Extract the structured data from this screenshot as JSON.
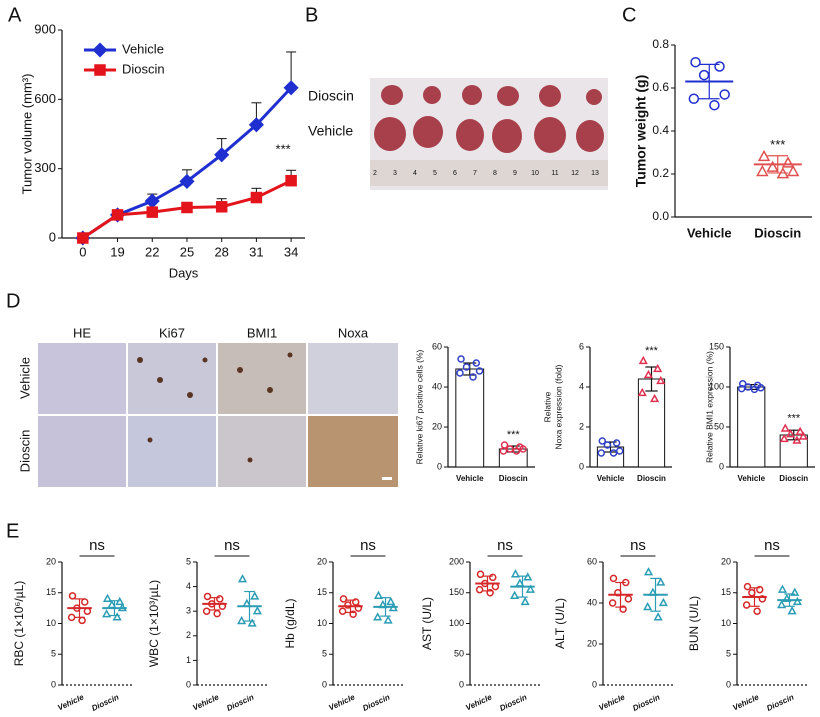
{
  "panels": [
    "A",
    "B",
    "C",
    "D",
    "E"
  ],
  "photos": {
    "B": {
      "rows": [
        "Dioscin",
        "Vehicle"
      ],
      "ruler": [
        2,
        3,
        4,
        5,
        6,
        7,
        8,
        9,
        10,
        11,
        12,
        13
      ]
    },
    "D": {
      "columns": [
        "HE",
        "Ki67",
        "BMI1",
        "Noxa"
      ],
      "rows": [
        "Vehicle",
        "Dioscin"
      ]
    }
  },
  "chart_data": [
    {
      "type": "line",
      "xlabel": "Days",
      "ylabel": "Tumor volume (mm³)",
      "categories": [
        "0",
        "19",
        "22",
        "25",
        "28",
        "31",
        "34"
      ],
      "series": [
        {
          "name": "Vehicle",
          "color": "#1f2fd0",
          "marker": "diamond",
          "values": [
            0,
            100,
            160,
            245,
            360,
            490,
            650
          ],
          "errors": [
            0,
            15,
            30,
            50,
            70,
            95,
            155
          ]
        },
        {
          "name": "Dioscin",
          "color": "#e3141b",
          "marker": "square",
          "values": [
            0,
            100,
            112,
            132,
            135,
            175,
            248
          ],
          "errors": [
            0,
            12,
            15,
            20,
            35,
            40,
            45
          ]
        }
      ],
      "ylim": [
        0,
        900
      ],
      "yticks": [
        0,
        300,
        600,
        900
      ],
      "annotation": "***",
      "legend": "upper left"
    },
    {
      "type": "dot",
      "ylabel": "Tumor weight (g)",
      "categories": [
        "Vehicle",
        "Dioscin"
      ],
      "colors": [
        "#1f2fd0",
        "#e05050"
      ],
      "markers": [
        "circle",
        "triangle"
      ],
      "points": [
        [
          0.72,
          0.7,
          0.66,
          0.57,
          0.55,
          0.52
        ],
        [
          0.28,
          0.25,
          0.23,
          0.21,
          0.21,
          0.2
        ]
      ],
      "means": [
        0.63,
        0.245
      ],
      "errors": [
        0.08,
        0.04
      ],
      "ylim": [
        0,
        0.8
      ],
      "yticks": [
        {
          "value": 0,
          "label": "0.0"
        },
        0.2,
        0.4,
        0.6,
        0.8
      ],
      "annotation": "***"
    },
    {
      "type": "bar",
      "ylabel": "Relative ki67 positive cells (%)",
      "categories": [
        "Vehicle",
        "Dioscin"
      ],
      "colors": [
        "#3040c8",
        "#e03050"
      ],
      "markers": [
        "circle",
        "circle"
      ],
      "values": [
        49,
        9
      ],
      "points": [
        [
          54,
          52,
          50,
          48,
          47,
          45
        ],
        [
          11,
          10,
          9,
          9,
          8,
          8
        ]
      ],
      "errors": [
        3,
        1.5
      ],
      "ylim": [
        0,
        60
      ],
      "yticks": [
        0,
        20,
        40,
        60
      ],
      "annotation": "***"
    },
    {
      "type": "bar",
      "ylabel": [
        "Relative",
        "Noxa expression (fold)"
      ],
      "categories": [
        "Vehicle",
        "Dioscin"
      ],
      "colors": [
        "#3040c8",
        "#e03050"
      ],
      "markers": [
        "circle",
        "triangle"
      ],
      "values": [
        1,
        4.4
      ],
      "points": [
        [
          1.3,
          1.2,
          1.1,
          0.8,
          0.7,
          0.7
        ],
        [
          5.3,
          4.9,
          4.6,
          4.3,
          3.7,
          3.4
        ]
      ],
      "errors": [
        0.25,
        0.6
      ],
      "ylim": [
        0,
        6
      ],
      "yticks": [
        0,
        2,
        4,
        6
      ],
      "annotation": "***"
    },
    {
      "type": "bar",
      "ylabel": "Relative BMI1 expression (%)",
      "categories": [
        "Vehicle",
        "Dioscin"
      ],
      "colors": [
        "#3040c8",
        "#e03050"
      ],
      "markers": [
        "circle",
        "triangle"
      ],
      "values": [
        100,
        40
      ],
      "points": [
        [
          104,
          102,
          100,
          99,
          98,
          97
        ],
        [
          48,
          44,
          41,
          38,
          35,
          33
        ]
      ],
      "errors": [
        3,
        6
      ],
      "ylim": [
        0,
        150
      ],
      "yticks": [
        0,
        50,
        100,
        150
      ],
      "annotation": "***"
    },
    {
      "type": "dot",
      "ylabel": "RBC (1×10⁶/µL)",
      "categories": [
        "Vehicle",
        "Dioscin"
      ],
      "colors": [
        "#d62728",
        "#2a9db5"
      ],
      "markers": [
        "circle",
        "triangle"
      ],
      "points": [
        [
          14.5,
          13.5,
          12.5,
          12,
          11,
          10.5
        ],
        [
          14,
          13.5,
          13,
          12.5,
          11.5,
          11
        ]
      ],
      "means": [
        12.5,
        12.5
      ],
      "errors": [
        1.5,
        1.2
      ],
      "ylim": [
        0,
        20
      ],
      "yticks": [
        0,
        5,
        10,
        15,
        20
      ],
      "annotation": "ns"
    },
    {
      "type": "dot",
      "ylabel": "WBC (1×10³/µL)",
      "categories": [
        "Vehicle",
        "Dioscin"
      ],
      "colors": [
        "#d62728",
        "#2a9db5"
      ],
      "markers": [
        "circle",
        "triangle"
      ],
      "points": [
        [
          3.6,
          3.5,
          3.3,
          3.2,
          3,
          2.9
        ],
        [
          4.3,
          3.6,
          3.3,
          3,
          2.6,
          2.5
        ]
      ],
      "means": [
        3.3,
        3.2
      ],
      "errors": [
        0.25,
        0.6
      ],
      "ylim": [
        0,
        5
      ],
      "yticks": [
        0,
        1,
        2,
        3,
        4,
        5
      ],
      "annotation": "ns"
    },
    {
      "type": "dot",
      "ylabel": "Hb (g/dL)",
      "categories": [
        "Vehicle",
        "Dioscin"
      ],
      "colors": [
        "#d62728",
        "#2a9db5"
      ],
      "markers": [
        "circle",
        "triangle"
      ],
      "points": [
        [
          14,
          13.5,
          13,
          12.5,
          12,
          11.5
        ],
        [
          14.5,
          13.5,
          13,
          12.5,
          11,
          10.5
        ]
      ],
      "means": [
        12.8,
        12.7
      ],
      "errors": [
        1,
        1.5
      ],
      "ylim": [
        0,
        20
      ],
      "yticks": [
        0,
        5,
        10,
        15,
        20
      ],
      "annotation": "ns"
    },
    {
      "type": "dot",
      "ylabel": "AST (U/L)",
      "categories": [
        "Vehicle",
        "Dioscin"
      ],
      "colors": [
        "#d62728",
        "#2a9db5"
      ],
      "markers": [
        "circle",
        "triangle"
      ],
      "points": [
        [
          180,
          175,
          165,
          160,
          155,
          150
        ],
        [
          180,
          175,
          165,
          155,
          145,
          135
        ]
      ],
      "means": [
        165,
        160
      ],
      "errors": [
        12,
        17
      ],
      "ylim": [
        0,
        200
      ],
      "yticks": [
        0,
        50,
        100,
        150,
        200
      ],
      "annotation": "ns"
    },
    {
      "type": "dot",
      "ylabel": "ALT (U/L)",
      "categories": [
        "Vehicle",
        "Dioscin"
      ],
      "colors": [
        "#d62728",
        "#2a9db5"
      ],
      "markers": [
        "circle",
        "triangle"
      ],
      "points": [
        [
          52,
          50,
          45,
          42,
          40,
          37
        ],
        [
          55,
          50,
          45,
          40,
          38,
          33
        ]
      ],
      "means": [
        44,
        44
      ],
      "errors": [
        6,
        8
      ],
      "ylim": [
        0,
        60
      ],
      "yticks": [
        0,
        20,
        40,
        60
      ],
      "annotation": "ns"
    },
    {
      "type": "dot",
      "ylabel": "BUN (U/L)",
      "categories": [
        "Vehicle",
        "Dioscin"
      ],
      "colors": [
        "#d62728",
        "#2a9db5"
      ],
      "markers": [
        "circle",
        "triangle"
      ],
      "points": [
        [
          16,
          15.5,
          15,
          14,
          13,
          12
        ],
        [
          15.5,
          15,
          14,
          13.5,
          13,
          12
        ]
      ],
      "means": [
        14.3,
        13.8
      ],
      "errors": [
        1.5,
        1
      ],
      "ylim": [
        0,
        20
      ],
      "yticks": [
        0,
        5,
        10,
        15,
        20
      ],
      "annotation": "ns"
    }
  ]
}
